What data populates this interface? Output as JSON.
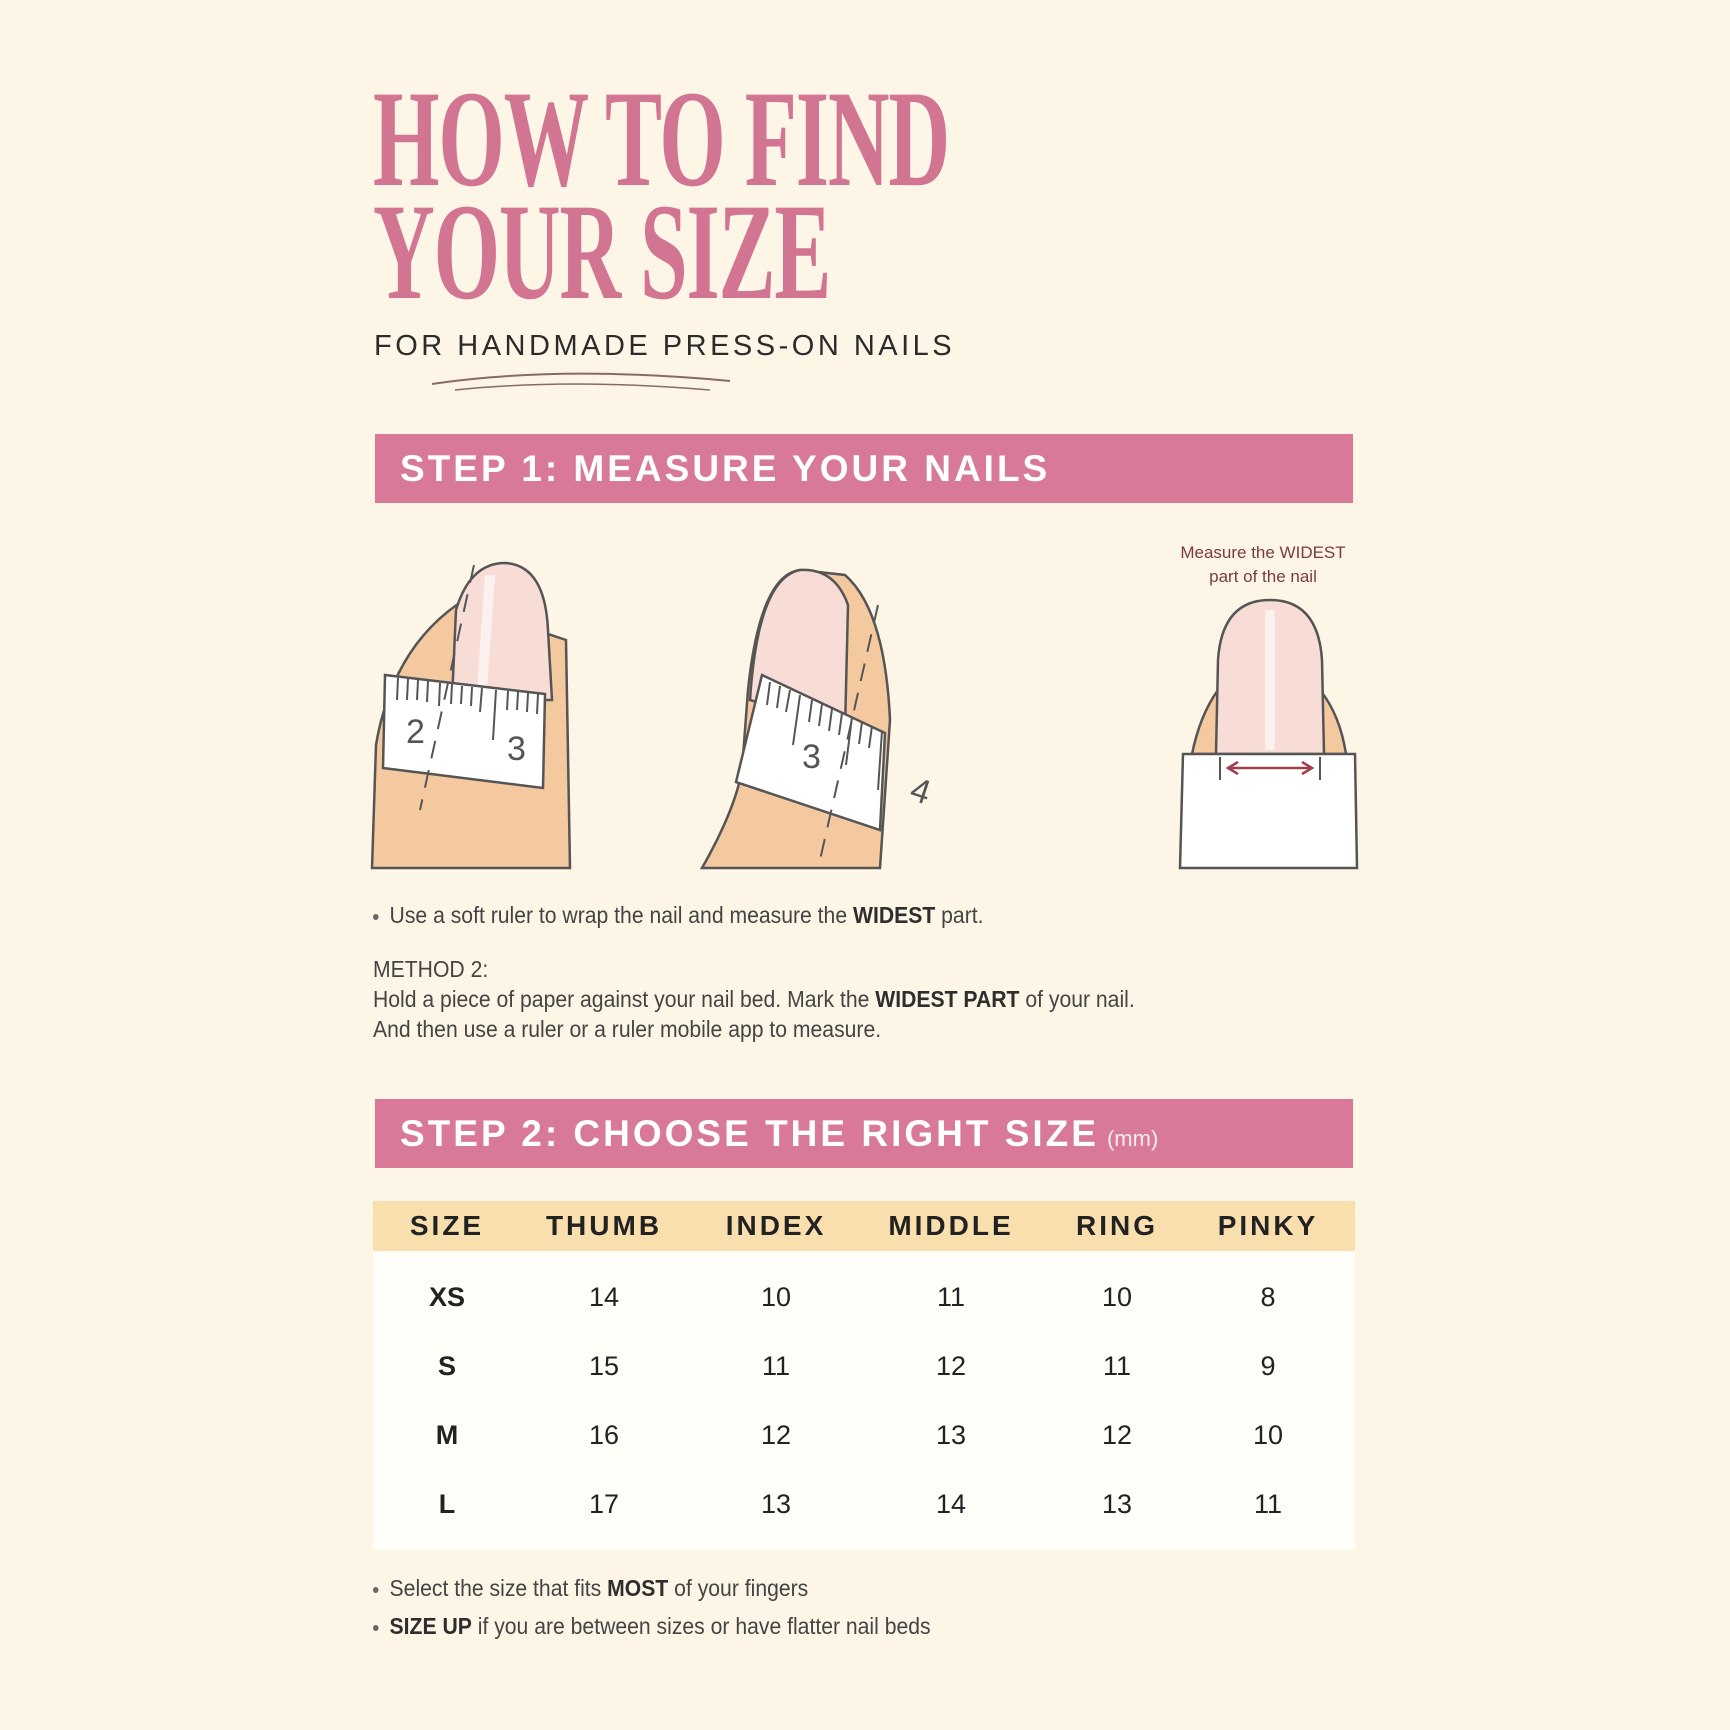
{
  "header": {
    "title_line1": "HOW TO FIND",
    "title_line2": "YOUR SIZE",
    "subtitle": "FOR HANDMADE PRESS-ON NAILS"
  },
  "step1": {
    "heading": "STEP 1: MEASURE YOUR NAILS",
    "illustration_label_line1": "Measure the WIDEST",
    "illustration_label_line2": "part of the nail",
    "ruler1_numbers": [
      "2",
      "3"
    ],
    "ruler2_numbers": [
      "3",
      "4"
    ],
    "bullet": {
      "before": "Use a soft ruler to wrap the nail and measure the ",
      "bold": "WIDEST",
      "after": " part."
    },
    "method2_title": "METHOD 2:",
    "method2_line1": {
      "before": "Hold a piece of paper against your nail bed. Mark the ",
      "bold": "WIDEST PART",
      "after": " of your nail."
    },
    "method2_line2": "And then use a ruler or a ruler mobile app to measure."
  },
  "step2": {
    "heading": "STEP 2: CHOOSE THE RIGHT SIZE",
    "unit": "(mm)"
  },
  "table": {
    "columns": [
      "SIZE",
      "THUMB",
      "INDEX",
      "MIDDLE",
      "RING",
      "PINKY"
    ],
    "rows": [
      [
        "XS",
        "14",
        "10",
        "11",
        "10",
        "8"
      ],
      [
        "S",
        "15",
        "11",
        "12",
        "11",
        "9"
      ],
      [
        "M",
        "16",
        "12",
        "13",
        "12",
        "10"
      ],
      [
        "L",
        "17",
        "13",
        "14",
        "13",
        "11"
      ]
    ]
  },
  "notes": [
    {
      "before": "Select the size that fits ",
      "bold": "MOST",
      "after": " of your fingers"
    },
    {
      "before": "",
      "bold": "SIZE UP",
      "after": " if you are between sizes or have flatter nail beds"
    }
  ],
  "colors": {
    "background": "#fdf6e6",
    "accent_pink": "#d87a97",
    "title_pink": "#d27592",
    "table_header": "#f9dfae",
    "skin": "#f5c9a0",
    "nail": "#f8ddd6"
  }
}
